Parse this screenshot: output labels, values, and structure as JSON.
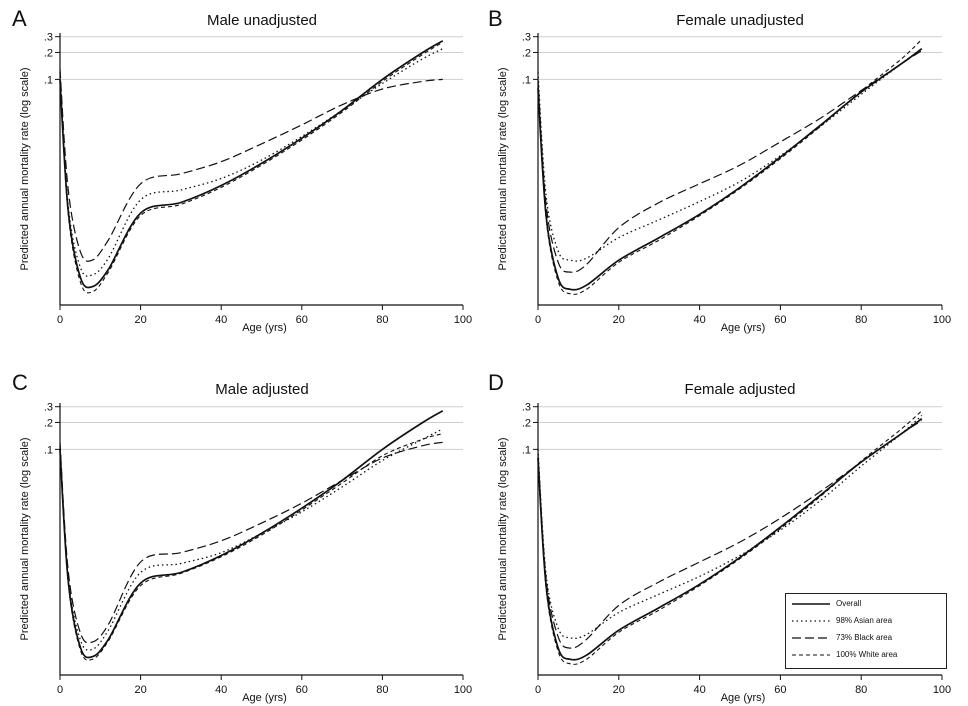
{
  "chart_data": [
    {
      "type": "line",
      "panel_label": "A",
      "title": "Male unadjusted",
      "xlabel": "Age (yrs)",
      "ylabel": "Predicted annual mortality rate (log scale)",
      "xlim": [
        0,
        100
      ],
      "x_ticks": [
        "0",
        "20",
        "40",
        "60",
        "80",
        "100"
      ],
      "y_ticks": [
        ".1",
        ".2",
        ".3"
      ],
      "y_scale": "log",
      "ylim": [
        0.0003,
        0.33
      ],
      "series": [
        {
          "style": "solid",
          "x": [
            0,
            2,
            5,
            8,
            12,
            20,
            30,
            40,
            50,
            60,
            70,
            80,
            90,
            95
          ],
          "y": [
            0.1,
            0.0035,
            0.00062,
            0.00048,
            0.00075,
            0.0032,
            0.0042,
            0.0065,
            0.0115,
            0.022,
            0.045,
            0.1,
            0.2,
            0.27
          ]
        },
        {
          "style": "dotted",
          "x": [
            0,
            2,
            5,
            8,
            12,
            20,
            30,
            40,
            50,
            60,
            70,
            80,
            90,
            95
          ],
          "y": [
            0.12,
            0.004,
            0.0008,
            0.00065,
            0.001,
            0.0045,
            0.0058,
            0.0078,
            0.0125,
            0.023,
            0.045,
            0.09,
            0.17,
            0.22
          ]
        },
        {
          "style": "long-dash",
          "x": [
            0,
            2,
            5,
            8,
            12,
            20,
            30,
            40,
            50,
            60,
            70,
            80,
            90,
            95
          ],
          "y": [
            0.13,
            0.006,
            0.0012,
            0.00095,
            0.0016,
            0.0068,
            0.0088,
            0.012,
            0.019,
            0.031,
            0.052,
            0.078,
            0.095,
            0.1
          ]
        },
        {
          "style": "dashed",
          "x": [
            0,
            2,
            5,
            8,
            12,
            20,
            30,
            40,
            50,
            60,
            70,
            80,
            90,
            95
          ],
          "y": [
            0.1,
            0.0032,
            0.00055,
            0.00042,
            0.0007,
            0.003,
            0.004,
            0.0062,
            0.011,
            0.021,
            0.043,
            0.095,
            0.19,
            0.26
          ]
        }
      ]
    },
    {
      "type": "line",
      "panel_label": "B",
      "title": "Female unadjusted",
      "xlabel": "Age (yrs)",
      "ylabel": "Predicted annual mortality rate (log scale)",
      "xlim": [
        0,
        100
      ],
      "x_ticks": [
        "0",
        "20",
        "40",
        "60",
        "80",
        "100"
      ],
      "y_ticks": [
        ".1",
        ".2",
        ".3"
      ],
      "y_scale": "log",
      "ylim": [
        0.0003,
        0.33
      ],
      "series": [
        {
          "style": "solid",
          "x": [
            0,
            2,
            5,
            8,
            12,
            20,
            30,
            40,
            50,
            60,
            70,
            80,
            90,
            95
          ],
          "y": [
            0.08,
            0.003,
            0.0006,
            0.00045,
            0.0005,
            0.00095,
            0.0017,
            0.0031,
            0.0062,
            0.0135,
            0.031,
            0.072,
            0.15,
            0.22
          ]
        },
        {
          "style": "dotted",
          "x": [
            0,
            2,
            5,
            8,
            12,
            20,
            30,
            40,
            50,
            60,
            70,
            80,
            90,
            95
          ],
          "y": [
            0.12,
            0.005,
            0.0012,
            0.00095,
            0.001,
            0.0017,
            0.0027,
            0.0043,
            0.0072,
            0.014,
            0.03,
            0.068,
            0.15,
            0.22
          ]
        },
        {
          "style": "long-dash",
          "x": [
            0,
            2,
            5,
            8,
            12,
            20,
            30,
            40,
            50,
            60,
            70,
            80,
            90,
            95
          ],
          "y": [
            0.1,
            0.004,
            0.0009,
            0.0007,
            0.00085,
            0.0022,
            0.0042,
            0.0068,
            0.011,
            0.02,
            0.037,
            0.075,
            0.15,
            0.21
          ]
        },
        {
          "style": "dashed",
          "x": [
            0,
            2,
            5,
            8,
            12,
            20,
            30,
            40,
            50,
            60,
            70,
            80,
            90,
            95
          ],
          "y": [
            0.08,
            0.0028,
            0.00055,
            0.0004,
            0.00045,
            0.0009,
            0.0016,
            0.003,
            0.006,
            0.013,
            0.03,
            0.074,
            0.17,
            0.28
          ]
        }
      ]
    },
    {
      "type": "line",
      "panel_label": "C",
      "title": "Male adjusted",
      "xlabel": "Age (yrs)",
      "ylabel": "Predicted annual mortality rate (log scale)",
      "xlim": [
        0,
        100
      ],
      "x_ticks": [
        "0",
        "20",
        "40",
        "60",
        "80",
        "100"
      ],
      "y_ticks": [
        ".1",
        ".2",
        ".3"
      ],
      "y_scale": "log",
      "ylim": [
        0.0003,
        0.33
      ],
      "series": [
        {
          "style": "solid",
          "x": [
            0,
            2,
            5,
            8,
            12,
            20,
            30,
            40,
            50,
            60,
            70,
            80,
            90,
            95
          ],
          "y": [
            0.1,
            0.0035,
            0.00062,
            0.00048,
            0.00075,
            0.0032,
            0.0042,
            0.0065,
            0.0115,
            0.022,
            0.045,
            0.1,
            0.2,
            0.27
          ]
        },
        {
          "style": "dotted",
          "x": [
            0,
            2,
            5,
            8,
            12,
            20,
            30,
            40,
            50,
            60,
            70,
            80,
            90,
            95
          ],
          "y": [
            0.11,
            0.0038,
            0.00075,
            0.00058,
            0.00095,
            0.0042,
            0.0053,
            0.007,
            0.0115,
            0.02,
            0.038,
            0.075,
            0.13,
            0.17
          ]
        },
        {
          "style": "long-dash",
          "x": [
            0,
            2,
            5,
            8,
            12,
            20,
            30,
            40,
            50,
            60,
            70,
            80,
            90,
            95
          ],
          "y": [
            0.12,
            0.0045,
            0.0009,
            0.0007,
            0.0011,
            0.0055,
            0.007,
            0.0095,
            0.015,
            0.025,
            0.045,
            0.08,
            0.11,
            0.12
          ]
        },
        {
          "style": "dashed",
          "x": [
            0,
            2,
            5,
            8,
            12,
            20,
            30,
            40,
            50,
            60,
            70,
            80,
            90,
            95
          ],
          "y": [
            0.1,
            0.0033,
            0.00058,
            0.00045,
            0.00072,
            0.003,
            0.0041,
            0.0063,
            0.011,
            0.021,
            0.042,
            0.085,
            0.13,
            0.15
          ]
        }
      ]
    },
    {
      "type": "line",
      "panel_label": "D",
      "title": "Female adjusted",
      "xlabel": "Age (yrs)",
      "ylabel": "Predicted annual mortality rate (log scale)",
      "xlim": [
        0,
        100
      ],
      "x_ticks": [
        "0",
        "20",
        "40",
        "60",
        "80",
        "100"
      ],
      "y_ticks": [
        ".1",
        ".2",
        ".3"
      ],
      "y_scale": "log",
      "ylim": [
        0.0003,
        0.33
      ],
      "legend": {
        "placement": "bottom-right",
        "entries": [
          {
            "label": "Overall",
            "style": "solid"
          },
          {
            "label": "98% Asian area",
            "style": "dotted"
          },
          {
            "label": "73% Black area",
            "style": "long-dash"
          },
          {
            "label": "100% White area",
            "style": "dashed"
          }
        ]
      },
      "series": [
        {
          "style": "solid",
          "x": [
            0,
            2,
            5,
            8,
            12,
            20,
            30,
            40,
            50,
            60,
            70,
            80,
            90,
            95
          ],
          "y": [
            0.08,
            0.003,
            0.0006,
            0.00045,
            0.0005,
            0.00095,
            0.0017,
            0.0031,
            0.0062,
            0.0135,
            0.031,
            0.072,
            0.15,
            0.22
          ]
        },
        {
          "style": "dotted",
          "x": [
            0,
            2,
            5,
            8,
            12,
            20,
            30,
            40,
            50,
            60,
            70,
            80,
            90,
            95
          ],
          "y": [
            0.1,
            0.004,
            0.001,
            0.00078,
            0.00085,
            0.0015,
            0.0024,
            0.0038,
            0.0065,
            0.0125,
            0.027,
            0.065,
            0.15,
            0.24
          ]
        },
        {
          "style": "long-dash",
          "x": [
            0,
            2,
            5,
            8,
            12,
            20,
            30,
            40,
            50,
            60,
            70,
            80,
            90,
            95
          ],
          "y": [
            0.09,
            0.0036,
            0.0008,
            0.0006,
            0.00075,
            0.0018,
            0.0033,
            0.0055,
            0.0092,
            0.017,
            0.034,
            0.072,
            0.15,
            0.21
          ]
        },
        {
          "style": "dashed",
          "x": [
            0,
            2,
            5,
            8,
            12,
            20,
            30,
            40,
            50,
            60,
            70,
            80,
            90,
            95
          ],
          "y": [
            0.08,
            0.0028,
            0.00055,
            0.0004,
            0.00045,
            0.0009,
            0.0016,
            0.003,
            0.006,
            0.013,
            0.03,
            0.074,
            0.17,
            0.27
          ]
        }
      ]
    }
  ]
}
